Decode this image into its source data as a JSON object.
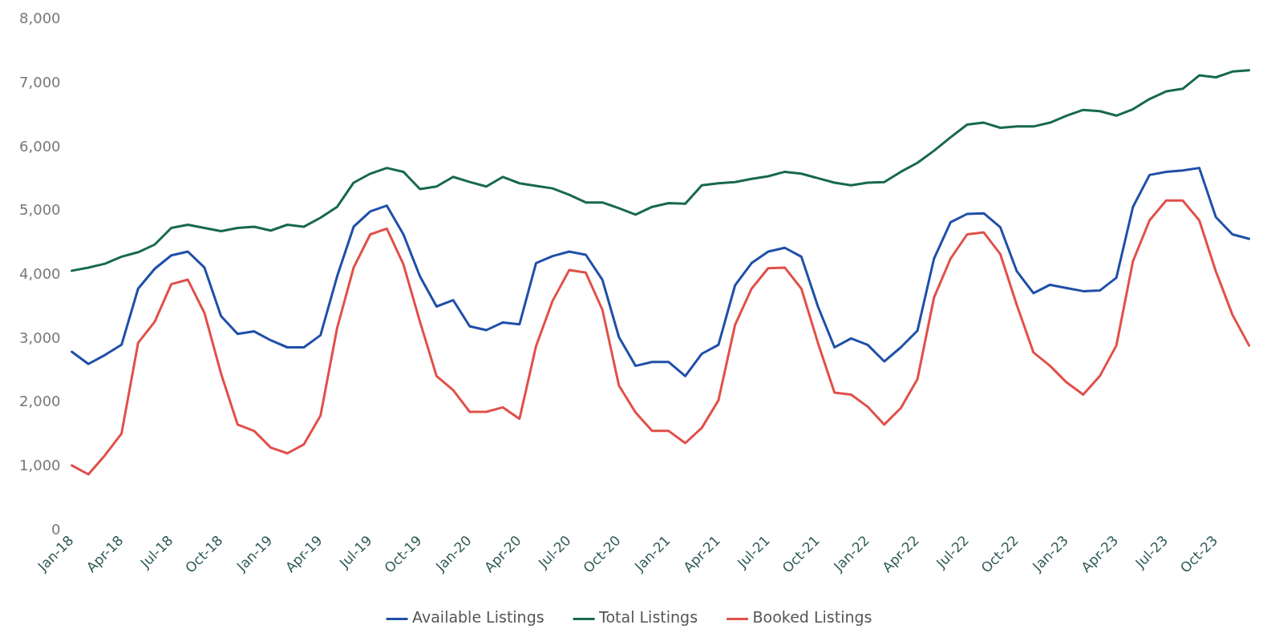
{
  "chart_data": {
    "type": "line",
    "categories": [
      "Jan-18",
      null,
      null,
      "Apr-18",
      null,
      null,
      "Jul-18",
      null,
      null,
      "Oct-18",
      null,
      null,
      "Jan-19",
      null,
      null,
      "Apr-19",
      null,
      null,
      "Jul-19",
      null,
      null,
      "Oct-19",
      null,
      null,
      "Jan-20",
      null,
      null,
      "Apr-20",
      null,
      null,
      "Jul-20",
      null,
      null,
      "Oct-20",
      null,
      null,
      "Jan-21",
      null,
      null,
      "Apr-21",
      null,
      null,
      "Jul-21",
      null,
      null,
      "Oct-21",
      null,
      null,
      "Jan-22",
      null,
      null,
      "Apr-22",
      null,
      null,
      "Jul-22",
      null,
      null,
      "Oct-22",
      null,
      null,
      "Jan-23",
      null,
      null,
      "Apr-23",
      null,
      null,
      "Jul-23",
      null,
      null,
      "Oct-23",
      null,
      null
    ],
    "series": [
      {
        "name": "Available Listings",
        "color": "#1f4fa8",
        "values": [
          2800,
          2610,
          2750,
          2910,
          3790,
          4100,
          4310,
          4370,
          4120,
          3360,
          3080,
          3120,
          2980,
          2870,
          2870,
          3060,
          3980,
          4760,
          5000,
          5090,
          4640,
          3980,
          3510,
          3610,
          3200,
          3140,
          3260,
          3230,
          4190,
          4300,
          4370,
          4320,
          3930,
          3030,
          2580,
          2640,
          2640,
          2420,
          2770,
          2910,
          3840,
          4190,
          4370,
          4430,
          4290,
          3510,
          2870,
          3010,
          2910,
          2650,
          2870,
          3130,
          4260,
          4830,
          4960,
          4970,
          4750,
          4060,
          3720,
          3850,
          3800,
          3750,
          3760,
          3960,
          5070,
          5570,
          5620,
          5640,
          5680,
          4910,
          4640,
          4570
        ]
      },
      {
        "name": "Total Listings",
        "color": "#17694a",
        "values": [
          4070,
          4120,
          4180,
          4290,
          4360,
          4480,
          4740,
          4790,
          4740,
          4690,
          4740,
          4760,
          4700,
          4790,
          4760,
          4900,
          5070,
          5450,
          5590,
          5680,
          5620,
          5350,
          5390,
          5540,
          5460,
          5390,
          5540,
          5440,
          5400,
          5360,
          5260,
          5140,
          5140,
          5050,
          4950,
          5070,
          5130,
          5120,
          5410,
          5440,
          5460,
          5510,
          5550,
          5620,
          5590,
          5520,
          5450,
          5410,
          5450,
          5460,
          5620,
          5760,
          5950,
          6160,
          6360,
          6390,
          6310,
          6330,
          6330,
          6390,
          6500,
          6590,
          6570,
          6500,
          6600,
          6760,
          6880,
          6920,
          7130,
          7100,
          7190,
          7210
        ]
      },
      {
        "name": "Booked Listings",
        "color": "#e0504a",
        "values": [
          1020,
          880,
          1180,
          1520,
          2940,
          3270,
          3860,
          3930,
          3410,
          2460,
          1660,
          1560,
          1300,
          1210,
          1350,
          1800,
          3170,
          4120,
          4640,
          4730,
          4170,
          3270,
          2420,
          2200,
          1860,
          1860,
          1930,
          1750,
          2890,
          3600,
          4080,
          4040,
          3460,
          2270,
          1850,
          1560,
          1560,
          1370,
          1610,
          2040,
          3220,
          3790,
          4110,
          4120,
          3790,
          2940,
          2160,
          2130,
          1940,
          1660,
          1920,
          2370,
          3650,
          4260,
          4640,
          4670,
          4330,
          3530,
          2790,
          2580,
          2320,
          2130,
          2420,
          2900,
          4220,
          4860,
          5170,
          5170,
          4860,
          4060,
          3380,
          2900
        ]
      }
    ],
    "ylim": [
      0,
      8000
    ],
    "yticks": [
      0,
      {
        "value": 1000,
        "label": "1,000"
      },
      {
        "value": 2000,
        "label": "2,000"
      },
      {
        "value": 3000,
        "label": "3,000"
      },
      {
        "value": 4000,
        "label": "4,000"
      },
      {
        "value": 5000,
        "label": "5,000"
      },
      {
        "value": 6000,
        "label": "6,000"
      },
      {
        "value": 7000,
        "label": "7,000"
      },
      {
        "value": 8000,
        "label": "8,000"
      }
    ],
    "legend": "bottom",
    "marker": "none",
    "line_style": "solid"
  }
}
